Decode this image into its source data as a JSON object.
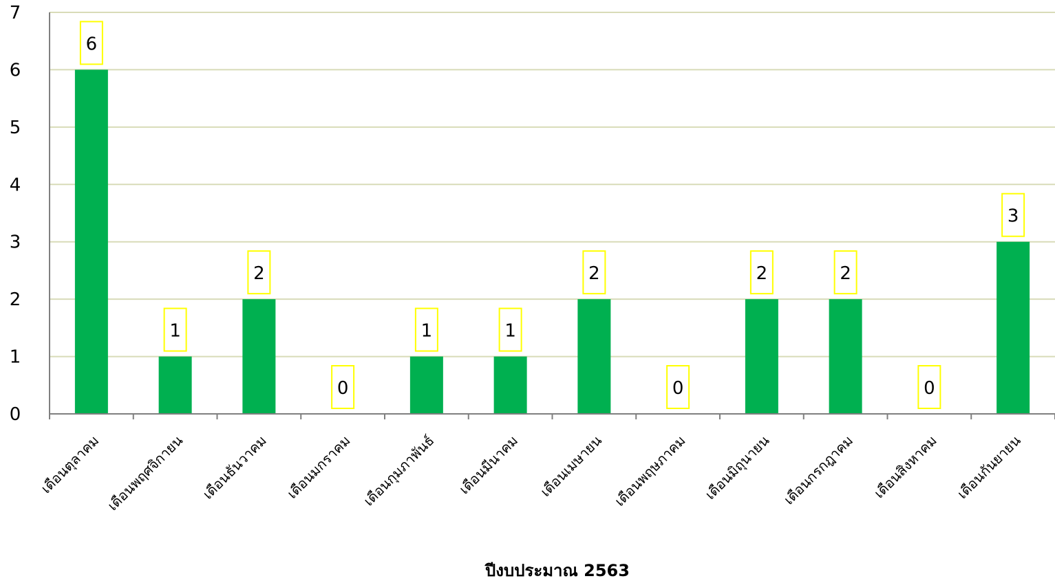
{
  "chart_data": {
    "type": "bar",
    "title": "",
    "xlabel": "ปีงบประมาณ 2563",
    "ylabel": "",
    "ylim": [
      0,
      7
    ],
    "yticks": [
      0,
      1,
      2,
      3,
      4,
      5,
      6,
      7
    ],
    "grid": true,
    "legend": "none",
    "categories": [
      "เดือนตุลาคม",
      "เดือนพฤศจิกายน",
      "เดือนธันวาคม",
      "เดือนมกราคม",
      "เดือนกุมภาพันธ์",
      "เดือนมีนาคม",
      "เดือนเมษายน",
      "เดือนพฤษภาคม",
      "เดือนมิถุนายน",
      "เดือนกรกฎาคม",
      "เดือนสิงหาคม",
      "เดือนกันยายน"
    ],
    "values": [
      6,
      1,
      2,
      0,
      1,
      1,
      2,
      0,
      2,
      2,
      0,
      3
    ],
    "colors": {
      "bar": "#00b050",
      "gridline": "#d8dbb8",
      "axis": "#7f7f7f",
      "label_border": "#ffff00"
    }
  }
}
